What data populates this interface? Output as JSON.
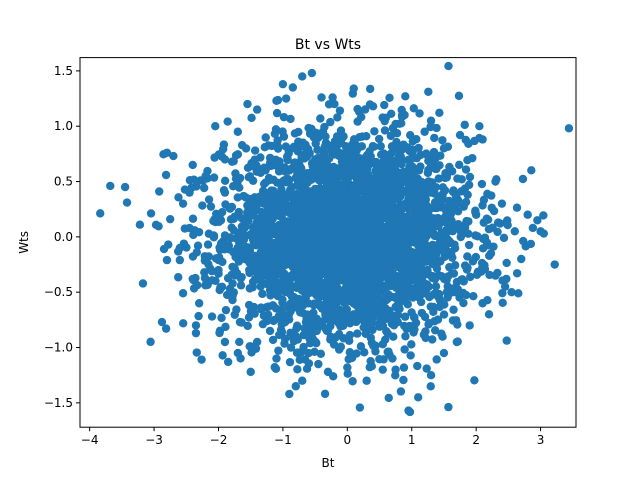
{
  "chart_data": {
    "type": "scatter",
    "title": "Bt vs Wts",
    "xlabel": "Bt",
    "ylabel": "Wts",
    "xlim": [
      -4.15,
      3.55
    ],
    "ylim": [
      -1.72,
      1.62
    ],
    "xticks": [
      -4,
      -3,
      -2,
      -1,
      0,
      1,
      2,
      3
    ],
    "yticks": [
      -1.5,
      -1.0,
      -0.5,
      0.0,
      0.5,
      1.0,
      1.5
    ],
    "ytick_labels": [
      "−1.5",
      "−1.0",
      "−0.5",
      "0.0",
      "0.5",
      "1.0",
      "1.5"
    ],
    "xtick_labels": [
      "−4",
      "−3",
      "−2",
      "−1",
      "0",
      "1",
      "2",
      "3"
    ],
    "grid": false,
    "marker_color": "#1f77b4",
    "series": [
      {
        "x": [
          -3.68,
          -3.45,
          -3.42,
          -3.22,
          -2.92,
          -2.8,
          -2.75,
          -2.7,
          -2.55,
          -2.45,
          -2.78,
          -2.8,
          -2.6,
          -2.6,
          -2.4,
          -2.35,
          -2.35,
          -2.3,
          -2.1,
          -2.0,
          -1.9,
          -1.85,
          -1.7,
          -1.5,
          -1.4,
          -1.2,
          -1.1,
          -0.9,
          -0.8,
          -0.7,
          -0.6,
          -0.45,
          -0.3,
          0.0,
          0.3,
          0.55,
          0.7,
          0.95,
          1.1,
          1.3,
          1.5,
          1.7,
          1.9,
          2.1,
          2.2,
          2.3,
          2.45,
          2.55,
          2.7,
          2.8,
          2.95,
          3.0,
          3.05,
          3.22,
          2.6,
          2.4,
          2.3,
          2.1,
          2.05,
          1.75,
          1.5,
          1.3,
          1.2,
          0.9,
          0.85,
          0.75,
          0.4,
          0.1,
          -0.2,
          -0.4,
          -0.55,
          -0.7,
          -0.95,
          -1.0,
          -1.1,
          -1.4,
          -1.55,
          -1.7,
          -1.9,
          -2.05,
          -2.2,
          -2.4,
          -2.45,
          -1.9,
          -1.6,
          -1.3,
          -0.9,
          -0.5,
          -0.1,
          0.2,
          0.6,
          0.95,
          1.3,
          1.7,
          2.0
        ],
        "y": [
          0.46,
          0.45,
          0.31,
          0.11,
          0.41,
          0.76,
          0.16,
          0.73,
          0.3,
          0.08,
          -0.07,
          -0.21,
          -0.21,
          -0.1,
          -0.38,
          -0.8,
          -0.87,
          -0.6,
          -0.72,
          -0.3,
          -0.95,
          -1.13,
          -1.05,
          -1.22,
          -0.95,
          -0.85,
          -1.1,
          -1.42,
          -1.35,
          -1.3,
          -1.05,
          -1.15,
          -1.22,
          -1.18,
          -1.3,
          -1.2,
          -1.1,
          -1.57,
          -1.45,
          -1.25,
          -1.05,
          -0.95,
          -0.8,
          -0.6,
          -0.7,
          -0.35,
          -0.45,
          -0.5,
          -0.2,
          0.2,
          0.15,
          0.05,
          0.03,
          -0.25,
          0.05,
          0.3,
          0.5,
          0.88,
          1.0,
          0.92,
          0.8,
          1.0,
          0.95,
          1.27,
          1.1,
          1.02,
          1.18,
          1.34,
          1.2,
          1.26,
          1.48,
          1.45,
          1.25,
          1.38,
          1.23,
          1.15,
          1.2,
          0.95,
          0.7,
          1.0,
          0.55,
          0.65,
          0.4,
          0.4,
          0.1,
          0.3,
          0.6,
          0.7,
          0.85,
          0.62,
          0.7,
          0.55,
          0.4,
          0.3,
          0.2
        ]
      }
    ]
  }
}
